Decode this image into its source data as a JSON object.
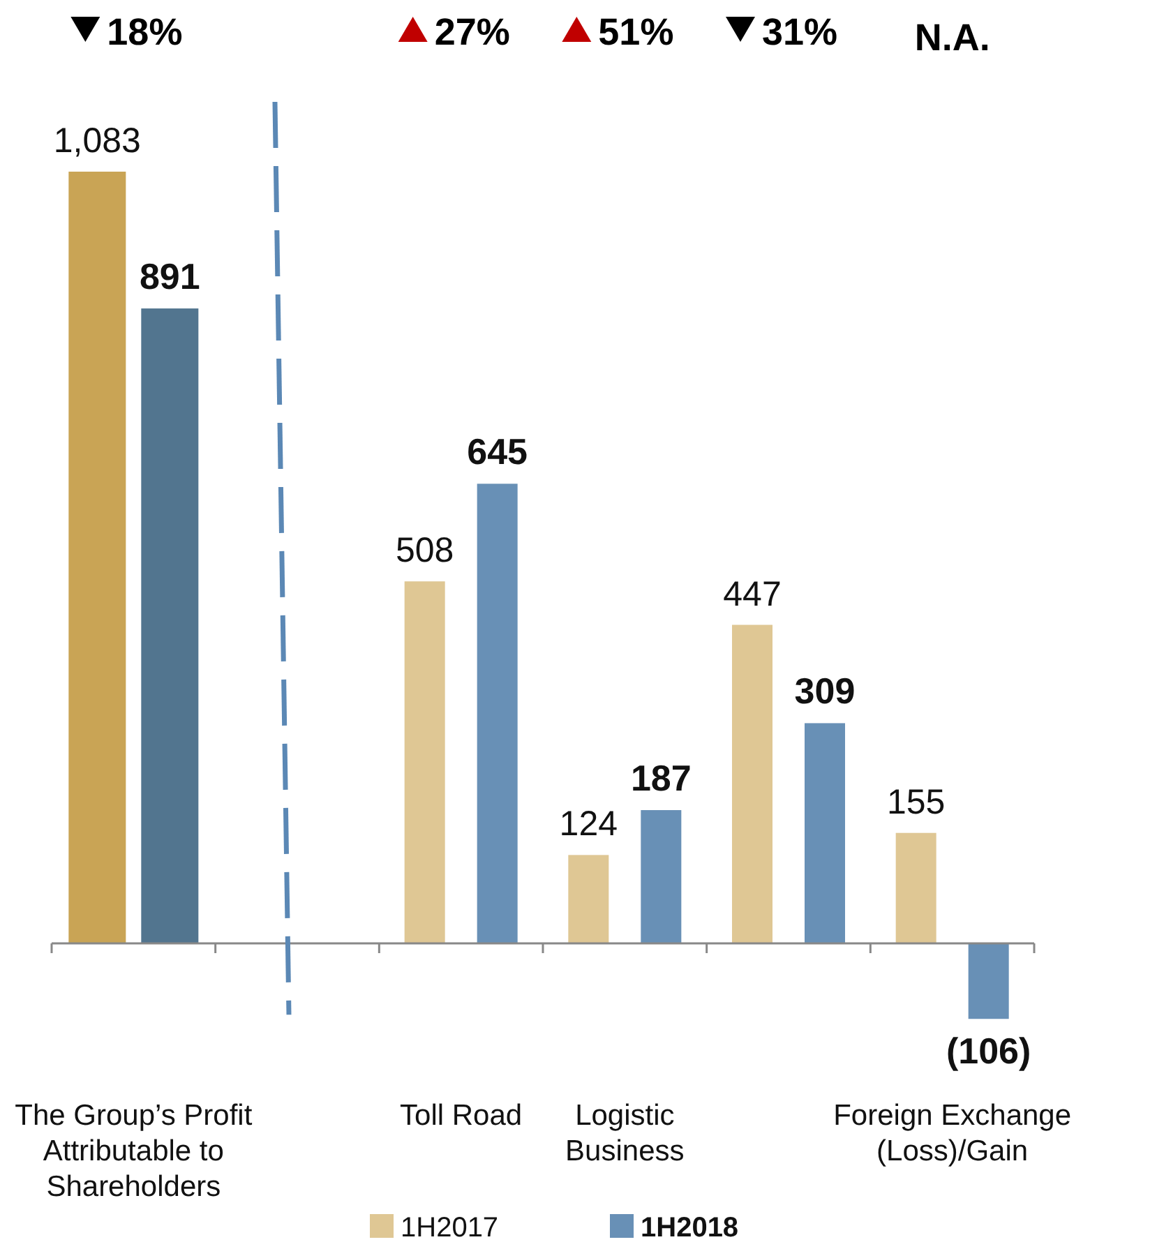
{
  "chart_data": {
    "type": "bar",
    "categories": [
      "The Group’s Profit\nAttributable to\nShareholders",
      null,
      "Toll Road",
      "Logistic\nBusiness",
      null,
      "Foreign Exchange\n(Loss)/Gain"
    ],
    "series": [
      {
        "name": "1H2017",
        "color": "#dfc794",
        "colors": [
          "#c9a455",
          null,
          "#dfc794",
          "#dfc794",
          "#dfc794",
          "#dfc794"
        ],
        "values": [
          1083,
          null,
          508,
          124,
          447,
          155
        ],
        "value_labels": [
          "1,083",
          null,
          "508",
          "124",
          "447",
          "155"
        ]
      },
      {
        "name": "1H2018",
        "color": "#6890b6",
        "colors": [
          "#52758f",
          null,
          "#6890b6",
          "#6890b6",
          "#6890b6",
          "#6890b6"
        ],
        "values": [
          891,
          null,
          645,
          187,
          309,
          -106
        ],
        "value_labels": [
          "891",
          null,
          "645",
          "187",
          "309",
          "(106)"
        ]
      }
    ],
    "annotations": [
      "18%",
      "27%",
      "51%",
      "31%",
      "N.A."
    ],
    "legend": "bottom"
  }
}
